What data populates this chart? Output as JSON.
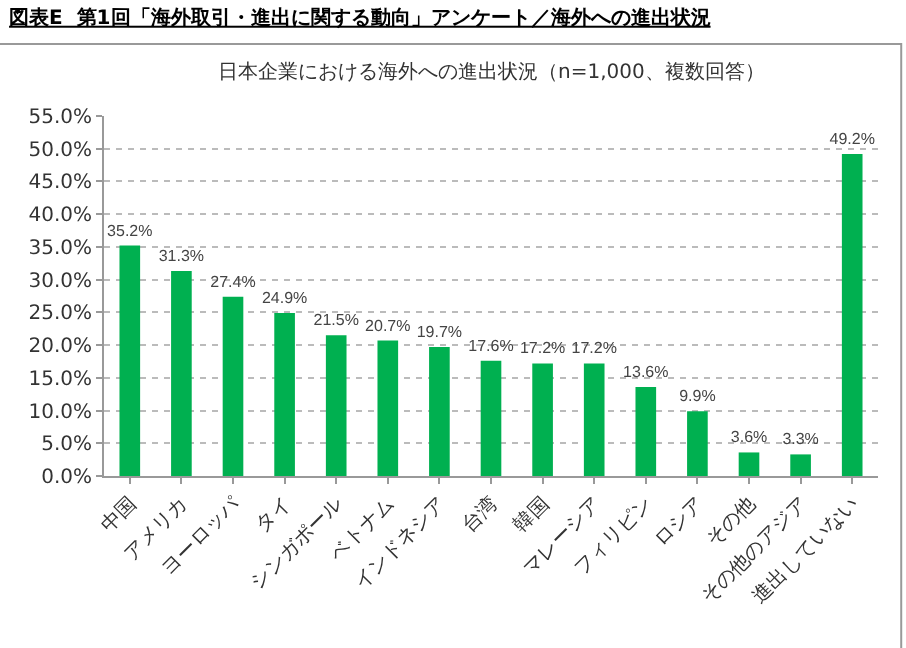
{
  "chart_data": {
    "type": "bar",
    "title": "図表E  第1回「海外取引・進出に関する動向」アンケート／海外への進出状況",
    "subtitle": "日本企業における海外への進出状況（n=1,000、複数回答）",
    "categories": [
      "中国",
      "アメリカ",
      "ヨーロッパ",
      "タイ",
      "シンガポール",
      "ベトナム",
      "インドネシア",
      "台湾",
      "韓国",
      "マレーシア",
      "フィリピン",
      "ロシア",
      "その他",
      "その他のアジア",
      "進出していない"
    ],
    "values": [
      35.2,
      31.3,
      27.4,
      24.9,
      21.5,
      20.7,
      19.7,
      17.6,
      17.2,
      17.2,
      13.6,
      9.9,
      3.6,
      3.3,
      49.2
    ],
    "value_labels": [
      "35.2%",
      "31.3%",
      "27.4%",
      "24.9%",
      "21.5%",
      "20.7%",
      "19.7%",
      "17.6%",
      "17.2%",
      "17.2%",
      "13.6%",
      "9.9%",
      "3.6%",
      "3.3%",
      "49.2%"
    ],
    "color": "#00b050",
    "ylim": [
      0,
      55
    ],
    "yticks": [
      {
        "value": 0,
        "label": "0.0%"
      },
      {
        "value": 5,
        "label": "5.0%"
      },
      {
        "value": 10,
        "label": "10.0%"
      },
      {
        "value": 15,
        "label": "15.0%"
      },
      {
        "value": 20,
        "label": "20.0%"
      },
      {
        "value": 25,
        "label": "25.0%"
      },
      {
        "value": 30,
        "label": "30.0%"
      },
      {
        "value": 35,
        "label": "35.0%"
      },
      {
        "value": 40,
        "label": "40.0%"
      },
      {
        "value": 45,
        "label": "45.0%"
      },
      {
        "value": 50,
        "label": "50.0%"
      },
      {
        "value": 55,
        "label": "55.0%"
      }
    ],
    "grid": "y"
  }
}
